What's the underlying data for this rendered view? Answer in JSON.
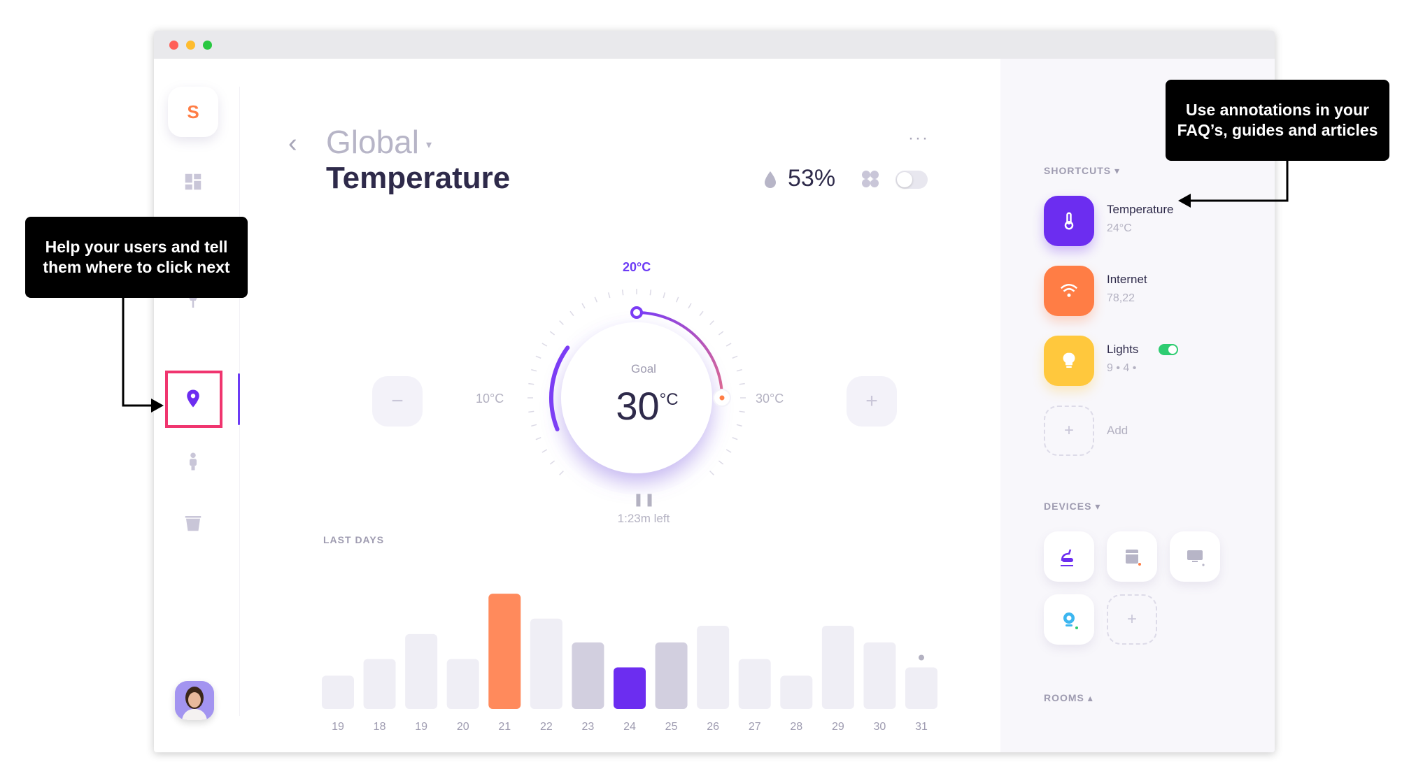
{
  "window": {
    "controls": [
      "close",
      "minimize",
      "maximize"
    ]
  },
  "sidebar": {
    "logo": "S",
    "items": [
      {
        "icon": "dashboard-icon",
        "active": false
      },
      {
        "icon": "lamp-icon",
        "active": false
      },
      {
        "icon": "location-pin-icon",
        "active": true
      },
      {
        "icon": "person-icon",
        "active": false
      },
      {
        "icon": "bin-icon",
        "active": false
      }
    ]
  },
  "header": {
    "back": "‹",
    "title": "Global",
    "title_caret": "▾",
    "subtitle": "Temperature",
    "more": "···",
    "humidity": "53%"
  },
  "thermostat": {
    "minus": "−",
    "plus": "+",
    "min_label": "10°C",
    "max_label": "30°C",
    "target_label": "20°C",
    "goal_label": "Goal",
    "goal_value": "30",
    "goal_unit": "°C",
    "pause_glyph": "❚❚",
    "time_left": "1:23m left",
    "range_min": 10,
    "range_max": 30,
    "current": 20,
    "goal": 30
  },
  "last_days": {
    "label": "LAST DAYS",
    "chart_data": {
      "type": "bar",
      "categories": [
        "19",
        "18",
        "19",
        "20",
        "21",
        "22",
        "23",
        "24",
        "25",
        "26",
        "27",
        "28",
        "29",
        "30",
        "31"
      ],
      "values": [
        2.8,
        4.2,
        6.3,
        4.2,
        9.7,
        7.6,
        5.6,
        3.5,
        5.6,
        7.0,
        4.2,
        2.8,
        7.0,
        5.6,
        3.5
      ],
      "highlight": {
        "21": "#ff8a5c",
        "24": "#6c2df0",
        "23": "#d2cfdf",
        "25": "#d2cfdf"
      },
      "default_color": "#efeef5",
      "ylim": [
        0,
        10
      ]
    }
  },
  "shortcuts": {
    "label": "SHORTCUTS",
    "caret": "▾",
    "items": [
      {
        "name": "Temperature",
        "value": "24°C",
        "color": "#6c2df0",
        "icon": "thermometer-icon"
      },
      {
        "name": "Internet",
        "value": "78,22",
        "color": "#ff7d45",
        "icon": "wifi-icon"
      },
      {
        "name": "Lights",
        "value": "9 •   4 •",
        "color": "#ffc83d",
        "icon": "bulb-icon"
      }
    ],
    "add_label": "Add",
    "add_glyph": "+"
  },
  "devices": {
    "label": "DEVICES",
    "caret": "▾",
    "items": [
      "vacuum-icon",
      "dishwasher-icon",
      "monitor-icon",
      "camera-icon"
    ],
    "add_glyph": "+"
  },
  "rooms": {
    "label": "ROOMS",
    "caret": "▴"
  },
  "annotations": {
    "left": "Help your users and tell them where to click next",
    "right": "Use annotations in your FAQ’s, guides and articles"
  },
  "colors": {
    "accent": "#6c2df0",
    "orange": "#ff7d45",
    "highlight_box": "#f0356f"
  }
}
